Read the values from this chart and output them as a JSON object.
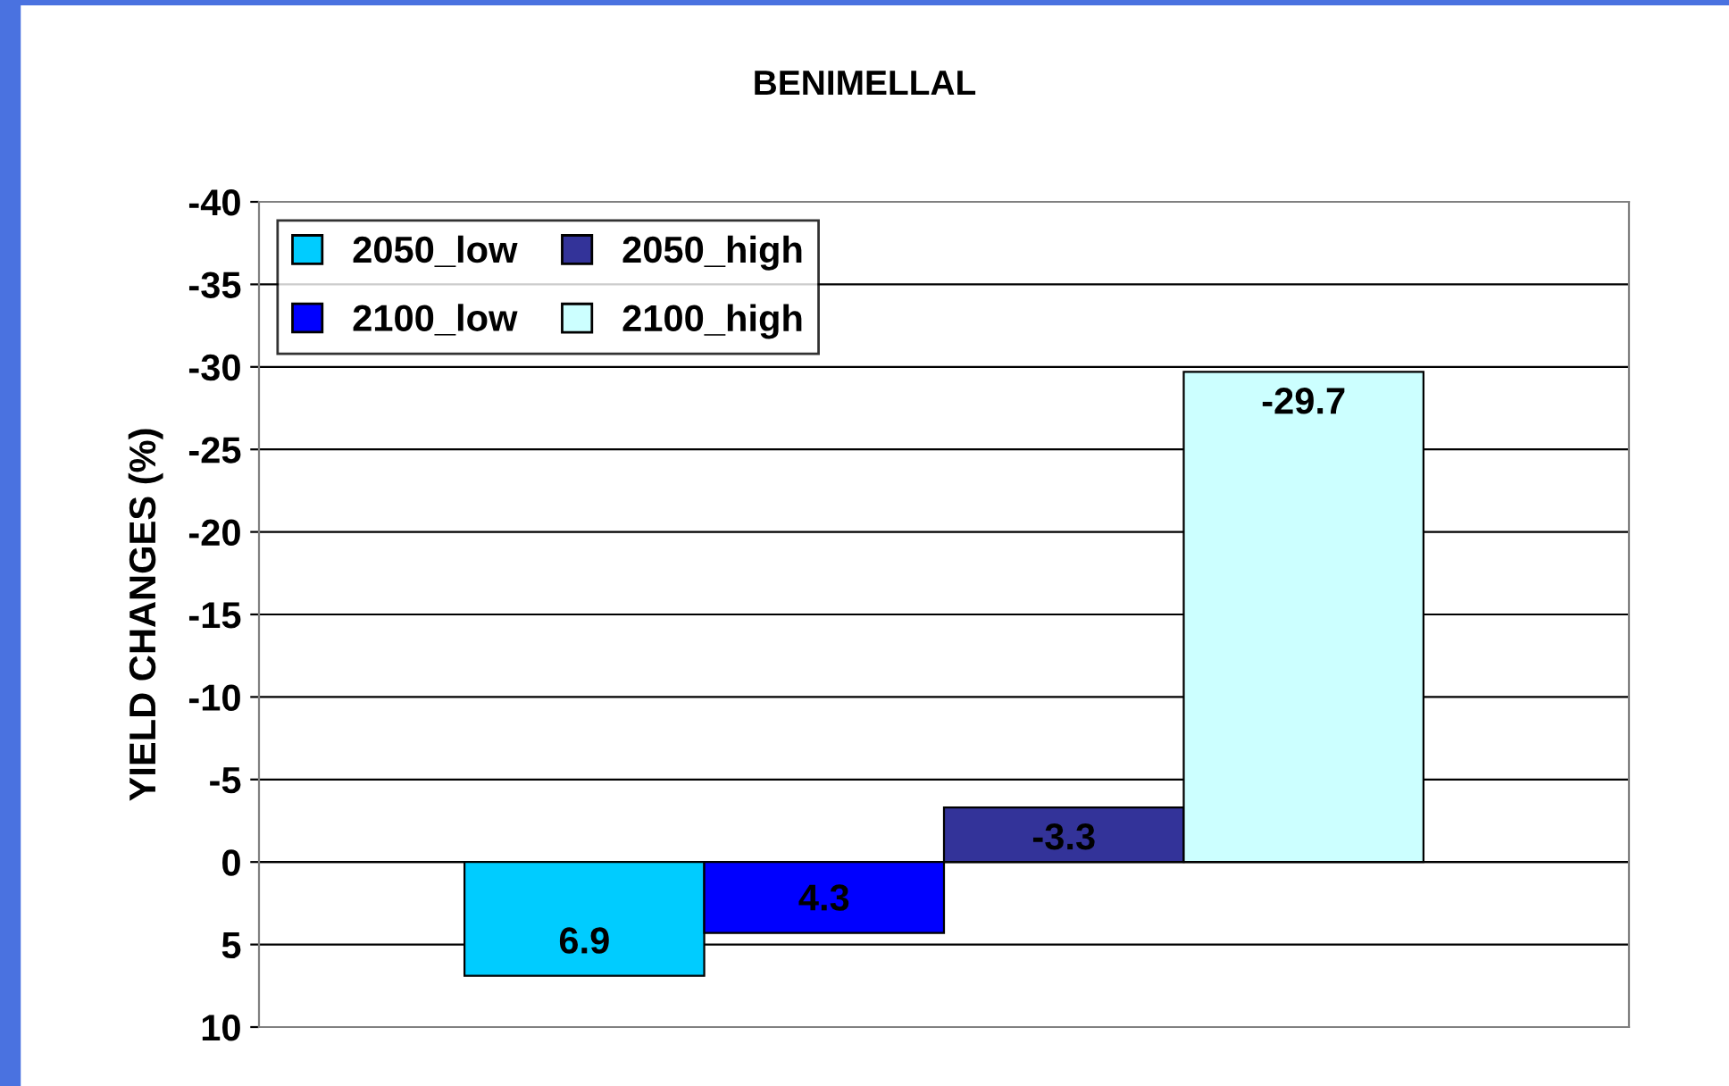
{
  "chart_data": {
    "type": "bar",
    "title": "BENIMELLAL",
    "ylabel": "YIELD CHANGES (%)",
    "categories": [
      null
    ],
    "series": [
      {
        "name": "2050_low",
        "color": "#00ccff",
        "values": [
          6.9
        ]
      },
      {
        "name": "2100_low",
        "color": "#0000ff",
        "values": [
          4.3
        ]
      },
      {
        "name": "2050_high",
        "color": "#333399",
        "values": [
          -3.3
        ]
      },
      {
        "name": "2100_high",
        "color": "#ccffff",
        "values": [
          -29.7
        ]
      }
    ],
    "ylim": [
      10,
      -40
    ],
    "yticks": [
      -40,
      -35,
      -30,
      -25,
      -20,
      -15,
      -10,
      -5,
      0,
      5,
      10
    ],
    "grid": "y",
    "legend": "top left",
    "data_labels": true
  }
}
